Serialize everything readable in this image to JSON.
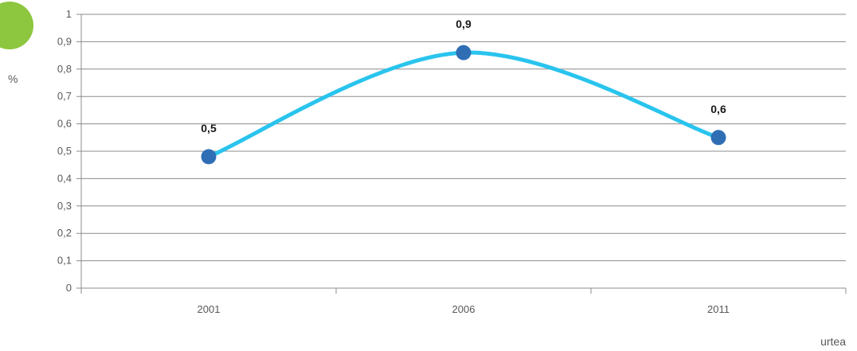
{
  "badge_color": "#8dc63f",
  "chart_data": {
    "type": "line",
    "title": "",
    "xlabel": "urtea",
    "ylabel": "%",
    "categories": [
      "2001",
      "2006",
      "2011"
    ],
    "series": [
      {
        "values": [
          0.48,
          0.86,
          0.55
        ],
        "data_labels": [
          "0,5",
          "0,9",
          "0,6"
        ],
        "line_color": "#29c4ee",
        "marker_color": "#2f6eb5"
      }
    ],
    "ylim": [
      0,
      1
    ],
    "yticks": [
      0,
      0.1,
      0.2,
      0.3,
      0.4,
      0.5,
      0.6,
      0.7,
      0.8,
      0.9,
      1
    ],
    "ytick_labels": [
      "0",
      "0,1",
      "0,2",
      "0,3",
      "0,4",
      "0,5",
      "0,6",
      "0,7",
      "0,8",
      "0,9",
      "1"
    ],
    "grid": true,
    "smooth": true
  }
}
